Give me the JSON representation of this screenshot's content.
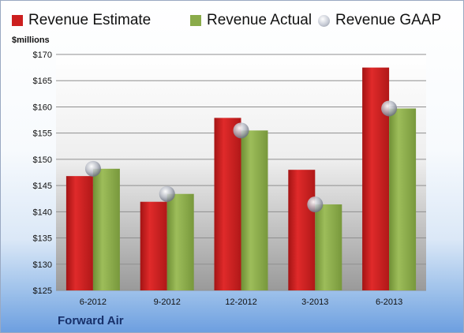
{
  "chart_data": {
    "type": "bar",
    "categories": [
      "6-2012",
      "9-2012",
      "12-2012",
      "3-2013",
      "6-2013"
    ],
    "series": [
      {
        "name": "Revenue Estimate",
        "kind": "bar",
        "color": "#cc1f1f",
        "values": [
          146.8,
          141.9,
          157.9,
          148.0,
          167.5
        ]
      },
      {
        "name": "Revenue Actual",
        "kind": "bar",
        "color": "#8aab4a",
        "values": [
          148.2,
          143.4,
          155.5,
          141.4,
          159.7
        ]
      },
      {
        "name": "Revenue GAAP",
        "kind": "bubble",
        "color": "#b8bcc6",
        "values": [
          148.2,
          143.4,
          155.5,
          141.4,
          159.7
        ]
      }
    ],
    "ylabel": "$millions",
    "ylim": [
      125,
      170
    ],
    "yticks": [
      125,
      130,
      135,
      140,
      145,
      150,
      155,
      160,
      165,
      170
    ],
    "ytick_labels": [
      "$125",
      "$130",
      "$135",
      "$140",
      "$145",
      "$150",
      "$155",
      "$160",
      "$165",
      "$170"
    ],
    "grid": true,
    "legend_position": "top"
  },
  "legend": {
    "estimate_label": "Revenue Estimate",
    "actual_label": "Revenue Actual",
    "gaap_label": "Revenue GAAP"
  },
  "unit_label": "$millions",
  "company": "Forward Air"
}
